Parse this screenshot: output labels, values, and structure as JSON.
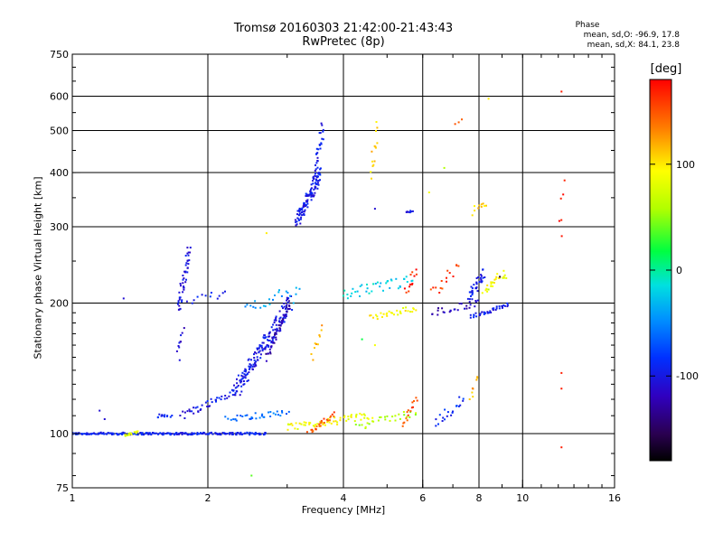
{
  "header": {
    "title_line1": "Tromsø 20160303 21:42:00-21:43:43",
    "title_line2": "RwPretec (8p)"
  },
  "phase_box": {
    "title": "Phase",
    "o_stats": "mean, sd,O: -96.9, 17.8",
    "x_stats": "mean, sd,X:  84.1, 23.8"
  },
  "colorbar": {
    "title": "[deg]",
    "ticks": [
      {
        "value": 100,
        "label": "100"
      },
      {
        "value": 0,
        "label": "0"
      },
      {
        "value": -100,
        "label": "-100"
      }
    ],
    "range": [
      -180,
      180
    ]
  },
  "chart_data": {
    "type": "scatter",
    "xlabel": "Frequency [MHz]",
    "ylabel": "Stationary phase Virtual Height [km]",
    "xscale": "log",
    "yscale": "log",
    "xlim": [
      1,
      16
    ],
    "ylim": [
      75,
      750
    ],
    "grid": true,
    "x_ticks": [
      {
        "value": 1,
        "label": "1"
      },
      {
        "value": 2,
        "label": "2"
      },
      {
        "value": 4,
        "label": "4"
      },
      {
        "value": 6,
        "label": "6"
      },
      {
        "value": 8,
        "label": "8"
      },
      {
        "value": 10,
        "label": "10"
      },
      {
        "value": 16,
        "label": "16"
      }
    ],
    "y_ticks": [
      {
        "value": 75,
        "label": "75"
      },
      {
        "value": 100,
        "label": "100"
      },
      {
        "value": 200,
        "label": "200"
      },
      {
        "value": 300,
        "label": "300"
      },
      {
        "value": 400,
        "label": "400"
      },
      {
        "value": 500,
        "label": "500"
      },
      {
        "value": 600,
        "label": "600"
      },
      {
        "value": 750,
        "label": "750"
      }
    ],
    "gridlines_x": [
      2,
      4,
      6,
      8,
      10
    ],
    "gridlines_y": [
      100,
      200,
      300,
      400,
      500,
      600
    ],
    "clusters": [
      {
        "f_from": 1.0,
        "f_to": 2.7,
        "h_from": 100,
        "h_to": 100,
        "phase": -95,
        "n": 220,
        "spread": 0.006
      },
      {
        "f_from": 1.3,
        "f_to": 1.4,
        "h_from": 99,
        "h_to": 101,
        "phase": 80,
        "n": 14,
        "spread": 0.008
      },
      {
        "f_from": 1.55,
        "f_to": 1.65,
        "h_from": 110,
        "h_to": 110,
        "phase": -90,
        "n": 12,
        "spread": 0.01
      },
      {
        "f_from": 1.75,
        "f_to": 2.3,
        "h_from": 110,
        "h_to": 125,
        "phase": -100,
        "n": 40,
        "spread": 0.02
      },
      {
        "f_from": 2.3,
        "f_to": 3.05,
        "h_from": 125,
        "h_to": 200,
        "phase": -100,
        "n": 170,
        "spread": 0.05
      },
      {
        "f_from": 2.7,
        "f_to": 3.05,
        "h_from": 150,
        "h_to": 200,
        "phase": -125,
        "n": 45,
        "spread": 0.02
      },
      {
        "f_from": 1.72,
        "f_to": 1.82,
        "h_from": 195,
        "h_to": 265,
        "phase": -105,
        "n": 45,
        "spread": 0.04
      },
      {
        "f_from": 1.72,
        "f_to": 1.76,
        "h_from": 150,
        "h_to": 175,
        "phase": -110,
        "n": 10,
        "spread": 0.02
      },
      {
        "f_from": 1.8,
        "f_to": 2.2,
        "h_from": 203,
        "h_to": 210,
        "phase": -95,
        "n": 12,
        "spread": 0.02
      },
      {
        "f_from": 2.4,
        "f_to": 3.2,
        "h_from": 195,
        "h_to": 215,
        "phase": -40,
        "n": 22,
        "spread": 0.03
      },
      {
        "f_from": 3.15,
        "f_to": 3.55,
        "h_from": 310,
        "h_to": 395,
        "phase": -100,
        "n": 120,
        "spread": 0.04
      },
      {
        "f_from": 3.45,
        "f_to": 3.6,
        "h_from": 390,
        "h_to": 510,
        "phase": -100,
        "n": 30,
        "spread": 0.03
      },
      {
        "f_from": 2.2,
        "f_to": 3.0,
        "h_from": 108,
        "h_to": 112,
        "phase": -60,
        "n": 35,
        "spread": 0.015
      },
      {
        "f_from": 3.0,
        "f_to": 4.6,
        "h_from": 103,
        "h_to": 110,
        "phase": 90,
        "n": 60,
        "spread": 0.02
      },
      {
        "f_from": 3.35,
        "f_to": 3.8,
        "h_from": 100,
        "h_to": 110,
        "phase": 150,
        "n": 25,
        "spread": 0.02
      },
      {
        "f_from": 3.4,
        "f_to": 3.6,
        "h_from": 150,
        "h_to": 175,
        "phase": 120,
        "n": 10,
        "spread": 0.02
      },
      {
        "f_from": 4.6,
        "f_to": 4.75,
        "h_from": 390,
        "h_to": 510,
        "phase": 110,
        "n": 14,
        "spread": 0.03
      },
      {
        "f_from": 4.0,
        "f_to": 5.7,
        "h_from": 210,
        "h_to": 225,
        "phase": -20,
        "n": 40,
        "spread": 0.03
      },
      {
        "f_from": 4.6,
        "f_to": 5.8,
        "h_from": 185,
        "h_to": 195,
        "phase": 95,
        "n": 30,
        "spread": 0.015
      },
      {
        "f_from": 4.3,
        "f_to": 5.8,
        "h_from": 104,
        "h_to": 112,
        "phase": 60,
        "n": 28,
        "spread": 0.02
      },
      {
        "f_from": 5.4,
        "f_to": 5.8,
        "h_from": 105,
        "h_to": 120,
        "phase": 150,
        "n": 15,
        "spread": 0.02
      },
      {
        "f_from": 5.5,
        "f_to": 5.7,
        "h_from": 325,
        "h_to": 325,
        "phase": -100,
        "n": 8,
        "spread": 0.005
      },
      {
        "f_from": 5.5,
        "f_to": 5.8,
        "h_from": 210,
        "h_to": 240,
        "phase": 170,
        "n": 12,
        "spread": 0.02
      },
      {
        "f_from": 6.3,
        "f_to": 8.0,
        "h_from": 190,
        "h_to": 200,
        "phase": -120,
        "n": 25,
        "spread": 0.02
      },
      {
        "f_from": 7.7,
        "f_to": 9.3,
        "h_from": 186,
        "h_to": 198,
        "phase": -100,
        "n": 40,
        "spread": 0.01
      },
      {
        "f_from": 7.6,
        "f_to": 8.2,
        "h_from": 205,
        "h_to": 235,
        "phase": -100,
        "n": 40,
        "spread": 0.03
      },
      {
        "f_from": 8.2,
        "f_to": 9.2,
        "h_from": 215,
        "h_to": 235,
        "phase": 90,
        "n": 25,
        "spread": 0.025
      },
      {
        "f_from": 7.7,
        "f_to": 8.3,
        "h_from": 325,
        "h_to": 340,
        "phase": 110,
        "n": 10,
        "spread": 0.02
      },
      {
        "f_from": 6.4,
        "f_to": 7.4,
        "h_from": 105,
        "h_to": 120,
        "phase": -90,
        "n": 20,
        "spread": 0.03
      },
      {
        "f_from": 6.3,
        "f_to": 7.2,
        "h_from": 210,
        "h_to": 245,
        "phase": 160,
        "n": 15,
        "spread": 0.03
      },
      {
        "f_from": 7.6,
        "f_to": 8.0,
        "h_from": 120,
        "h_to": 135,
        "phase": 120,
        "n": 8,
        "spread": 0.03
      },
      {
        "f_from": 12.1,
        "f_to": 12.3,
        "h_from": 285,
        "h_to": 380,
        "phase": 175,
        "n": 6,
        "spread": 0.03
      },
      {
        "f_from": 7.1,
        "f_to": 7.3,
        "h_from": 515,
        "h_to": 530,
        "phase": 140,
        "n": 3,
        "spread": 0.01
      }
    ],
    "isolated_points": [
      {
        "f": 12.2,
        "h": 615,
        "phase": 170
      },
      {
        "f": 12.2,
        "h": 93,
        "phase": 170
      },
      {
        "f": 12.2,
        "h": 138,
        "phase": 170
      },
      {
        "f": 12.2,
        "h": 127,
        "phase": 170
      },
      {
        "f": 8.4,
        "h": 592,
        "phase": 100
      },
      {
        "f": 4.7,
        "h": 160,
        "phase": 90
      },
      {
        "f": 2.5,
        "h": 80,
        "phase": 40
      },
      {
        "f": 2.7,
        "h": 290,
        "phase": 100
      },
      {
        "f": 4.7,
        "h": 330,
        "phase": -110
      },
      {
        "f": 1.3,
        "h": 205,
        "phase": -110
      },
      {
        "f": 1.15,
        "h": 113,
        "phase": -110
      },
      {
        "f": 1.18,
        "h": 108,
        "phase": -110
      },
      {
        "f": 8.4,
        "h": 215,
        "phase": 60
      },
      {
        "f": 3.1,
        "h": 200,
        "phase": -30
      },
      {
        "f": 4.4,
        "h": 165,
        "phase": 20
      },
      {
        "f": 6.2,
        "h": 360,
        "phase": 90
      },
      {
        "f": 6.7,
        "h": 410,
        "phase": 60
      },
      {
        "f": 8.9,
        "h": 230,
        "phase": -160
      }
    ]
  }
}
